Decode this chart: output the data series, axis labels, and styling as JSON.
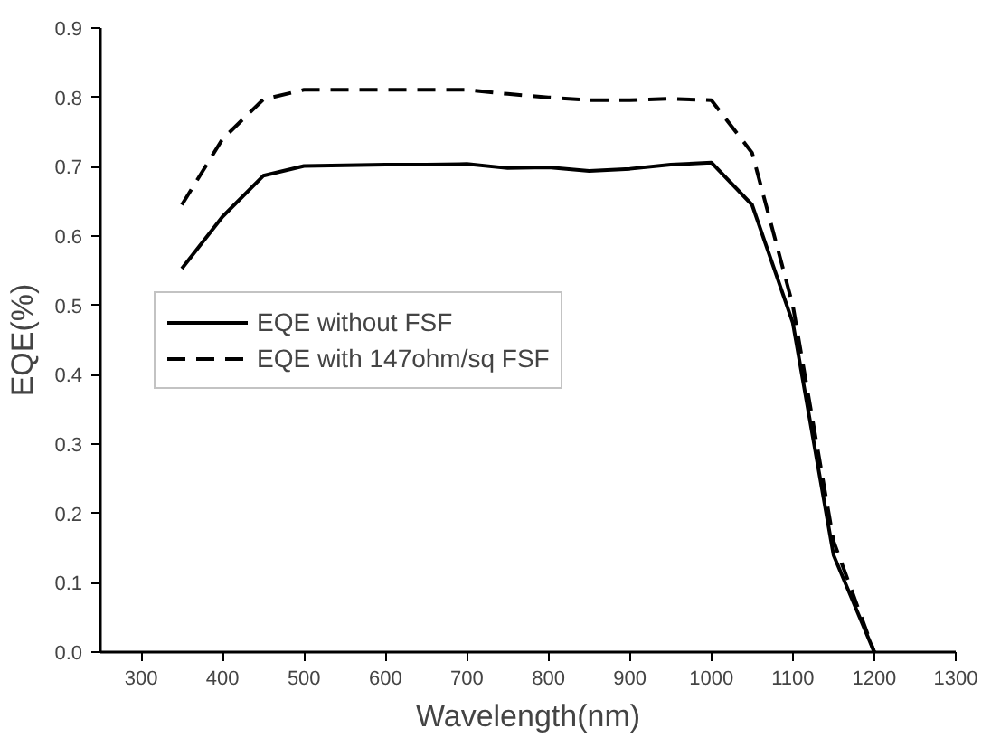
{
  "chart_data": {
    "type": "line",
    "xlabel": "Wavelength(nm)",
    "ylabel": "EQE(%)",
    "x": [
      350,
      400,
      450,
      500,
      550,
      600,
      650,
      700,
      750,
      800,
      850,
      900,
      950,
      1000,
      1050,
      1100,
      1150,
      1200
    ],
    "series": [
      {
        "name": "EQE without FSF",
        "color": "#000000",
        "line_style": "solid",
        "values": [
          0.553,
          0.628,
          0.687,
          0.701,
          0.702,
          0.703,
          0.703,
          0.704,
          0.698,
          0.699,
          0.694,
          0.697,
          0.703,
          0.706,
          0.645,
          0.475,
          0.14,
          0.0
        ]
      },
      {
        "name": "EQE with 147ohm/sq FSF",
        "color": "#000000",
        "line_style": "dashed",
        "values": [
          0.645,
          0.74,
          0.797,
          0.811,
          0.811,
          0.811,
          0.811,
          0.811,
          0.805,
          0.8,
          0.796,
          0.796,
          0.798,
          0.796,
          0.72,
          0.5,
          0.16,
          0.0
        ]
      }
    ],
    "xlim": [
      250,
      1300
    ],
    "xticks": [
      300,
      400,
      500,
      600,
      700,
      800,
      900,
      1000,
      1100,
      1200,
      1300
    ],
    "ylim": [
      0,
      0.9
    ],
    "yticks": [
      {
        "value": 0,
        "label": "0.0"
      },
      0.1,
      0.2,
      0.3,
      0.4,
      0.5,
      0.6,
      0.7,
      0.8,
      0.9
    ],
    "grid": false,
    "legend": "center left"
  }
}
